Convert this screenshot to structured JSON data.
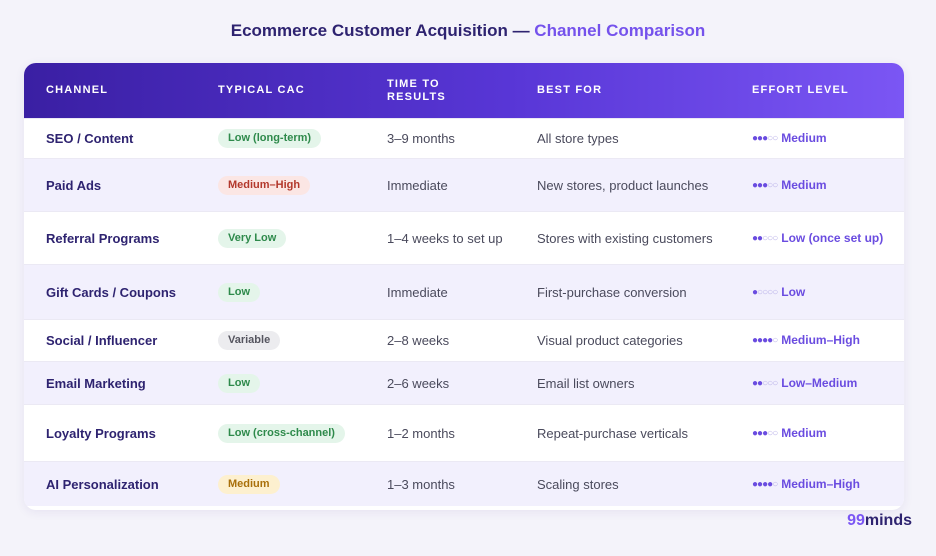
{
  "title": {
    "part1": "Ecommerce Customer Acquisition",
    "sep": " — ",
    "part2": "Channel Comparison"
  },
  "headers": [
    "CHANNEL",
    "TYPICAL CAC",
    "TIME TO\nRESULTS",
    "BEST FOR",
    "EFFORT LEVEL"
  ],
  "rows": [
    {
      "channel": "SEO / Content",
      "cac": "Low (long-term)",
      "cac_color": "green",
      "time": "3–9 months",
      "best": "All store types",
      "effort_dots": 3,
      "effort": "Medium"
    },
    {
      "channel": "Paid Ads",
      "cac": "Medium–High",
      "cac_color": "red",
      "time": "Immediate",
      "best": "New stores, product launches",
      "effort_dots": 3,
      "effort": "Medium"
    },
    {
      "channel": "Referral Programs",
      "cac": "Very Low",
      "cac_color": "green",
      "time": "1–4 weeks to set up",
      "best": "Stores with existing customers",
      "effort_dots": 2,
      "effort": "Low (once set up)"
    },
    {
      "channel": "Gift Cards / Coupons",
      "cac": "Low",
      "cac_color": "green",
      "time": "Immediate",
      "best": "First-purchase conversion",
      "effort_dots": 1,
      "effort": "Low"
    },
    {
      "channel": "Social / Influencer",
      "cac": "Variable",
      "cac_color": "gray",
      "time": "2–8 weeks",
      "best": "Visual product categories",
      "effort_dots": 4,
      "effort": "Medium–High"
    },
    {
      "channel": "Email Marketing",
      "cac": "Low",
      "cac_color": "green",
      "time": "2–6 weeks",
      "best": "Email list owners",
      "effort_dots": 2,
      "effort": "Low–Medium"
    },
    {
      "channel": "Loyalty Programs",
      "cac": "Low (cross-channel)",
      "cac_color": "green",
      "time": "1–2 months",
      "best": "Repeat-purchase verticals",
      "effort_dots": 3,
      "effort": "Medium"
    },
    {
      "channel": "AI Personalization",
      "cac": "Medium",
      "cac_color": "yellow",
      "time": "1–3 months",
      "best": "Scaling stores",
      "effort_dots": 4,
      "effort": "Medium–High"
    }
  ],
  "logo": {
    "num": "99",
    "word": "minds"
  }
}
